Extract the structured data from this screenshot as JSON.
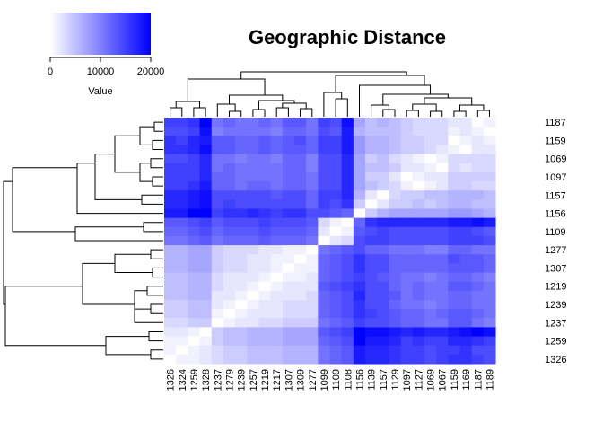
{
  "chart_data": {
    "type": "heatmap",
    "title": "Geographic Distance",
    "colors": {
      "low": "#ffffff",
      "high": "#0000ff",
      "text": "#000000"
    },
    "legend": {
      "title": "Value",
      "ticks": [
        "0",
        "10000",
        "20000"
      ],
      "range": [
        0,
        20000
      ],
      "placement": "top-left"
    },
    "column_labels": [
      "1326",
      "1324",
      "1259",
      "1328",
      "1237",
      "1279",
      "1239",
      "1257",
      "1219",
      "1217",
      "1307",
      "1309",
      "1277",
      "1099",
      "1109",
      "1108",
      "1156",
      "1139",
      "1157",
      "1129",
      "1097",
      "1127",
      "1069",
      "1067",
      "1159",
      "1169",
      "1187",
      "1189"
    ],
    "row_labels_visible": [
      "1187",
      "1159",
      "1069",
      "1097",
      "1157",
      "1156",
      "1109",
      "1277",
      "1307",
      "1219",
      "1239",
      "1237",
      "1259",
      "1326"
    ],
    "row_ids": [
      "1187",
      "1189",
      "1159",
      "1169",
      "1069",
      "1067",
      "1097",
      "1127",
      "1157",
      "1139",
      "1156",
      "1108",
      "1109",
      "1099",
      "1277",
      "1309",
      "1307",
      "1217",
      "1219",
      "1257",
      "1239",
      "1279",
      "1237",
      "1328",
      "1259",
      "1324",
      "1326"
    ],
    "row_values": [
      [
        15000,
        15000,
        16000,
        20000,
        11000,
        12000,
        11000,
        11000,
        12000,
        11000,
        13000,
        13000,
        11000,
        15000,
        14000,
        19000,
        7000,
        5000,
        6000,
        5000,
        4000,
        3000,
        3000,
        3000,
        2000,
        2000,
        0,
        1000
      ],
      [
        14000,
        14000,
        15000,
        19000,
        10000,
        11000,
        11000,
        11000,
        11000,
        10000,
        12000,
        12000,
        11000,
        14000,
        13000,
        18000,
        6000,
        5000,
        5000,
        5000,
        4000,
        3000,
        3000,
        3000,
        1000,
        2000,
        1000,
        0
      ],
      [
        16000,
        15000,
        17000,
        18000,
        13000,
        13000,
        12000,
        12000,
        13000,
        12000,
        13000,
        14000,
        12000,
        15000,
        15000,
        18000,
        8000,
        6000,
        6000,
        5000,
        4000,
        4000,
        3000,
        3000,
        0,
        1000,
        2000,
        1000
      ],
      [
        16000,
        16000,
        17000,
        19000,
        13000,
        13000,
        12000,
        12000,
        13000,
        12000,
        13000,
        13000,
        12000,
        15000,
        15000,
        18000,
        8000,
        6000,
        6000,
        5000,
        4000,
        4000,
        3000,
        2000,
        1000,
        0,
        2000,
        2000
      ],
      [
        14000,
        14000,
        15000,
        17000,
        11000,
        11000,
        10000,
        11000,
        11000,
        10000,
        12000,
        12000,
        10000,
        14000,
        14000,
        17000,
        7000,
        4000,
        5000,
        3000,
        2000,
        1000,
        0,
        1000,
        3000,
        3000,
        3000,
        3000
      ],
      [
        15000,
        15000,
        15000,
        17000,
        11000,
        12000,
        11000,
        11000,
        11000,
        11000,
        12000,
        12000,
        10000,
        14000,
        14000,
        17000,
        7000,
        5000,
        5000,
        4000,
        2000,
        2000,
        1000,
        0,
        3000,
        2000,
        3000,
        3000
      ],
      [
        15000,
        15000,
        15000,
        17000,
        12000,
        12000,
        11000,
        11000,
        11000,
        11000,
        12000,
        12000,
        11000,
        14000,
        14000,
        17000,
        7000,
        4000,
        4000,
        2000,
        0,
        1000,
        2000,
        2000,
        4000,
        4000,
        4000,
        4000
      ],
      [
        15000,
        15000,
        16000,
        18000,
        12000,
        12000,
        11000,
        12000,
        12000,
        11000,
        12000,
        12000,
        11000,
        14000,
        14000,
        17000,
        7000,
        5000,
        4000,
        3000,
        1000,
        0,
        1000,
        2000,
        4000,
        4000,
        3000,
        3000
      ],
      [
        17000,
        17000,
        18000,
        19000,
        14000,
        14000,
        14000,
        14000,
        14000,
        13000,
        14000,
        14000,
        12000,
        15000,
        15000,
        17000,
        6000,
        2000,
        0,
        3000,
        4000,
        4000,
        5000,
        5000,
        6000,
        6000,
        6000,
        5000
      ],
      [
        17000,
        17000,
        18000,
        19000,
        14000,
        15000,
        14000,
        14000,
        14000,
        14000,
        14000,
        14000,
        12000,
        15000,
        14000,
        16000,
        4000,
        0,
        2000,
        4000,
        4000,
        5000,
        4000,
        5000,
        6000,
        6000,
        5000,
        5000
      ],
      [
        18000,
        18000,
        20000,
        20000,
        15000,
        16000,
        16000,
        17000,
        16000,
        15000,
        16000,
        16000,
        14000,
        14000,
        13000,
        12000,
        0,
        4000,
        6000,
        7000,
        7000,
        7000,
        7000,
        7000,
        8000,
        8000,
        7000,
        6000
      ],
      [
        13000,
        13000,
        14000,
        15000,
        13000,
        14000,
        14000,
        14000,
        15000,
        14000,
        14000,
        14000,
        13000,
        3000,
        1000,
        0,
        12000,
        16000,
        17000,
        17000,
        17000,
        17000,
        17000,
        17000,
        18000,
        18000,
        19000,
        18000
      ],
      [
        12000,
        12000,
        13000,
        14000,
        12000,
        13000,
        13000,
        13000,
        14000,
        13000,
        13000,
        13000,
        12000,
        2000,
        0,
        1000,
        13000,
        14000,
        15000,
        14000,
        14000,
        14000,
        14000,
        14000,
        15000,
        15000,
        14000,
        13000
      ],
      [
        11000,
        11000,
        12000,
        13000,
        11000,
        12000,
        12000,
        12000,
        13000,
        12000,
        12000,
        12000,
        11000,
        0,
        2000,
        3000,
        14000,
        15000,
        15000,
        14000,
        14000,
        14000,
        14000,
        14000,
        15000,
        15000,
        15000,
        14000
      ],
      [
        6000,
        6000,
        7000,
        7000,
        4000,
        3000,
        3000,
        3000,
        2000,
        2000,
        1000,
        1000,
        0,
        11000,
        12000,
        13000,
        14000,
        12000,
        12000,
        11000,
        11000,
        11000,
        10000,
        10000,
        12000,
        12000,
        11000,
        11000
      ],
      [
        6000,
        6000,
        7000,
        7000,
        4000,
        3000,
        3000,
        2000,
        2000,
        1000,
        1000,
        0,
        1000,
        12000,
        13000,
        14000,
        16000,
        14000,
        14000,
        12000,
        12000,
        12000,
        12000,
        12000,
        14000,
        13000,
        13000,
        12000
      ],
      [
        6000,
        6000,
        7000,
        7000,
        4000,
        3000,
        3000,
        2000,
        2000,
        1000,
        0,
        1000,
        1000,
        12000,
        13000,
        14000,
        16000,
        14000,
        14000,
        12000,
        12000,
        12000,
        12000,
        12000,
        13000,
        13000,
        13000,
        12000
      ],
      [
        5000,
        5000,
        6000,
        6000,
        3000,
        2000,
        2000,
        2000,
        1000,
        0,
        1000,
        1000,
        2000,
        12000,
        13000,
        14000,
        15000,
        14000,
        13000,
        12000,
        11000,
        11000,
        10000,
        11000,
        12000,
        12000,
        11000,
        10000
      ],
      [
        5000,
        5000,
        6000,
        6000,
        3000,
        2000,
        2000,
        1000,
        0,
        1000,
        2000,
        2000,
        2000,
        13000,
        14000,
        15000,
        16000,
        14000,
        14000,
        12000,
        11000,
        12000,
        11000,
        11000,
        13000,
        13000,
        12000,
        11000
      ],
      [
        5000,
        5000,
        6000,
        6000,
        2000,
        2000,
        1000,
        0,
        1000,
        2000,
        2000,
        2000,
        3000,
        12000,
        13000,
        14000,
        17000,
        14000,
        14000,
        13000,
        11000,
        12000,
        11000,
        11000,
        12000,
        12000,
        11000,
        11000
      ],
      [
        4000,
        4000,
        5000,
        5000,
        2000,
        1000,
        0,
        1000,
        2000,
        2000,
        3000,
        3000,
        3000,
        12000,
        13000,
        14000,
        16000,
        14000,
        14000,
        12000,
        11000,
        11000,
        10000,
        11000,
        12000,
        12000,
        11000,
        11000
      ],
      [
        4000,
        4000,
        5000,
        5000,
        1000,
        0,
        1000,
        2000,
        2000,
        2000,
        3000,
        3000,
        3000,
        12000,
        13000,
        14000,
        16000,
        15000,
        14000,
        13000,
        12000,
        12000,
        11000,
        12000,
        13000,
        13000,
        12000,
        11000
      ],
      [
        3000,
        3000,
        4000,
        4000,
        0,
        1000,
        2000,
        2000,
        3000,
        3000,
        4000,
        4000,
        4000,
        11000,
        12000,
        13000,
        15000,
        14000,
        14000,
        13000,
        12000,
        12000,
        11000,
        11000,
        13000,
        13000,
        11000,
        10000
      ],
      [
        2000,
        2000,
        1000,
        0,
        4000,
        5000,
        5000,
        6000,
        6000,
        6000,
        7000,
        7000,
        7000,
        13000,
        14000,
        15000,
        20000,
        19000,
        19000,
        18000,
        17000,
        18000,
        17000,
        17000,
        18000,
        19000,
        20000,
        19000
      ],
      [
        1000,
        1000,
        0,
        1000,
        4000,
        5000,
        5000,
        6000,
        6000,
        6000,
        7000,
        7000,
        7000,
        12000,
        13000,
        14000,
        20000,
        18000,
        18000,
        17000,
        15000,
        16000,
        15000,
        15000,
        17000,
        17000,
        16000,
        15000
      ],
      [
        1000,
        0,
        1000,
        2000,
        3000,
        4000,
        4000,
        5000,
        5000,
        5000,
        6000,
        6000,
        6000,
        11000,
        12000,
        13000,
        18000,
        17000,
        17000,
        16000,
        15000,
        15000,
        14000,
        15000,
        15000,
        16000,
        14000,
        14000
      ],
      [
        0,
        1000,
        1000,
        2000,
        3000,
        4000,
        4000,
        5000,
        5000,
        5000,
        6000,
        6000,
        6000,
        11000,
        12000,
        13000,
        18000,
        17000,
        17000,
        16000,
        15000,
        15000,
        14000,
        15000,
        16000,
        16000,
        15000,
        14000
      ]
    ]
  }
}
